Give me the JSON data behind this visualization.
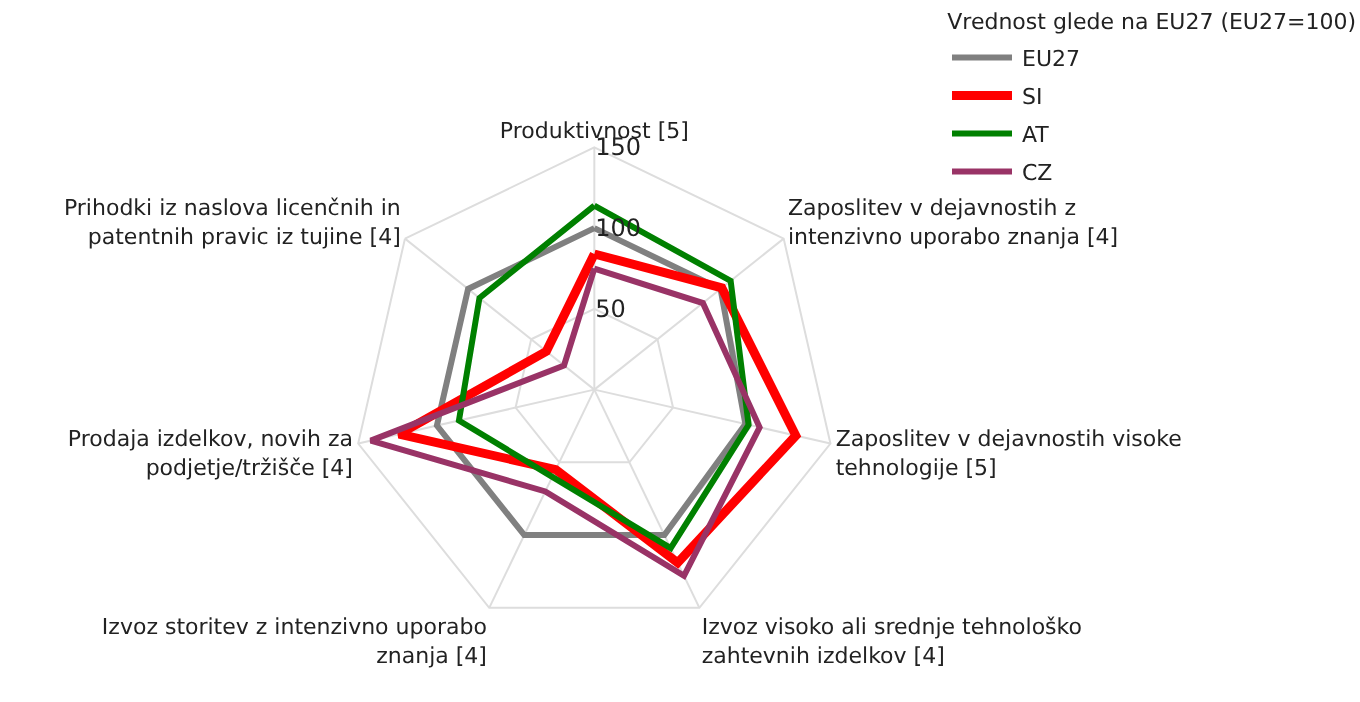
{
  "chart_data": {
    "type": "radar",
    "legend_title": "Vrednost glede na EU27 (EU27=100)",
    "categories": [
      "Produktivnost [5]",
      "Zaposlitev v dejavnostih z intenzivno uporabo znanja [4]",
      "Zaposlitev v dejavnostih visoke tehnologije [5]",
      "Izvoz visoko ali srednje tehnološko zahtevnih izdelkov [4]",
      "Izvoz storitev z intenzivno uporabo znanja [4]",
      "Prodaja izdelkov, novih za podjetje/tržišče [4]",
      "Prihodki iz naslova licenčnih in patentnih pravic iz tujine [4]"
    ],
    "series": [
      {
        "name": "EU27",
        "color": "#808080",
        "values": [
          100,
          100,
          96,
          100,
          100,
          100,
          100
        ]
      },
      {
        "name": "SI",
        "color": "#ff0000",
        "values": [
          84,
          101,
          128,
          119,
          55,
          124,
          38
        ]
      },
      {
        "name": "AT",
        "color": "#008000",
        "values": [
          114,
          108,
          98,
          109,
          60,
          86,
          91
        ]
      },
      {
        "name": "CZ",
        "color": "#993366",
        "values": [
          75,
          86,
          105,
          128,
          70,
          142,
          24
        ]
      }
    ],
    "ylim": [
      0,
      150
    ],
    "yticks": [
      50,
      100,
      150
    ],
    "grid": true,
    "legend": "top right",
    "line_style": "solid",
    "marker": "none"
  }
}
